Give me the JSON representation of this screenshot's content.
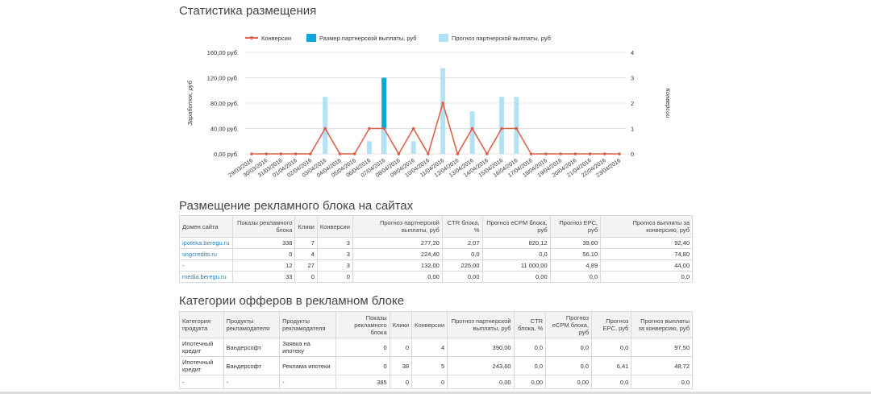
{
  "section1_title": "Статистика размещения",
  "section2_title": "Размещение рекламного блока на сайтах",
  "section3_title": "Категории офферов в рекламном блоке",
  "chart_data": {
    "type": "bar+line",
    "legend": [
      "Конверсии",
      "Размер партнерской выплаты, руб",
      "Прогноз партнерской выплаты, руб"
    ],
    "legend_placement": "top",
    "ylabel_left": "Заработок, руб",
    "ylabel_right": "Конверсии",
    "y_left_ticks": [
      "0,00 руб.",
      "40,00 руб.",
      "80,00 руб.",
      "120,00 руб.",
      "160,00 руб."
    ],
    "y_left_range": [
      0,
      160
    ],
    "y_right_ticks": [
      "0",
      "1",
      "2",
      "3",
      "4"
    ],
    "y_right_range": [
      0,
      4
    ],
    "categories": [
      "29/03/2016",
      "30/03/2016",
      "31/03/2016",
      "01/04/2016",
      "02/04/2016",
      "03/04/2016",
      "04/04/2016",
      "05/04/2016",
      "06/04/2016",
      "07/04/2016",
      "08/04/2016",
      "09/04/2016",
      "10/04/2016",
      "11/04/2016",
      "12/04/2016",
      "13/04/2016",
      "14/04/2016",
      "15/04/2016",
      "16/04/2016",
      "17/04/2016",
      "18/04/2016",
      "19/04/2016",
      "20/04/2016",
      "21/04/2016",
      "22/04/2016",
      "23/04/2016"
    ],
    "series": [
      {
        "name": "Размер партнерской выплаты, руб",
        "kind": "bar",
        "color": "#0ea5dd",
        "values": [
          0,
          0,
          0,
          0,
          0,
          0,
          0,
          0,
          0,
          120,
          0,
          0,
          0,
          0,
          0,
          0,
          0,
          0,
          0,
          0,
          0,
          0,
          0,
          0,
          0,
          0
        ]
      },
      {
        "name": "Прогноз партнерской выплаты, руб",
        "kind": "bar",
        "color": "#b3e2f5",
        "values": [
          0,
          0,
          0,
          0,
          0,
          90,
          0,
          0,
          20,
          40,
          0,
          20,
          0,
          135,
          0,
          67,
          0,
          90,
          90,
          0,
          0,
          0,
          0,
          0,
          0,
          0
        ]
      },
      {
        "name": "Конверсии",
        "kind": "line",
        "color": "#e0614a",
        "values": [
          0,
          0,
          0,
          0,
          0,
          1,
          0,
          0,
          1,
          1,
          0,
          1,
          0,
          2,
          0,
          1,
          0,
          1,
          1,
          0,
          0,
          0,
          0,
          0,
          0,
          0
        ]
      }
    ],
    "grid": true
  },
  "sites_table": {
    "headers": [
      "Домен сайта",
      "Показы рекламного блока",
      "Клики",
      "Конверсии",
      "Прогноз партнерской выплаты, руб",
      "CTR блока, %",
      "Прогноз eCPM блока, руб",
      "Прогноз EPC, руб",
      "Прогноз выплаты за конверсию, руб"
    ],
    "rows": [
      [
        "ipoteka.beregu.ru",
        "338",
        "7",
        "3",
        "277,20",
        "2,07",
        "820,12",
        "39,60",
        "92,40"
      ],
      [
        "sngcredits.ru",
        "0",
        "4",
        "3",
        "224,40",
        "0,0",
        "0,0",
        "56,10",
        "74,80"
      ],
      [
        "-",
        "12",
        "27",
        "3",
        "132,00",
        "225,00",
        "11 000,00",
        "4,89",
        "44,00"
      ],
      [
        "media.beregu.ru",
        "33",
        "0",
        "0",
        "0,00",
        "0,00",
        "0,00",
        "0,0",
        "0,0"
      ]
    ]
  },
  "cats_table": {
    "headers": [
      "Категория продукта",
      "Продукты рекламодателя",
      "Продукты рекламодателя",
      "Показы рекламного блока",
      "Клики",
      "Конверсии",
      "Прогноз партнерской выплаты, руб",
      "CTR блока, %",
      "Прогноз eCPM блока, руб",
      "Прогноз EPC, руб",
      "Прогноз выплаты за конверсию, руб"
    ],
    "rows": [
      [
        "Ипотечный кредит",
        "Вандерсофт",
        "Заявка на ипотеку",
        "0",
        "0",
        "4",
        "390,00",
        "0,0",
        "0,0",
        "0,0",
        "97,50"
      ],
      [
        "Ипотечный кредит",
        "Вандерсофт",
        "Реклама ипотеки",
        "0",
        "38",
        "5",
        "243,60",
        "0,0",
        "0,0",
        "6,41",
        "48,72"
      ],
      [
        "-",
        "-",
        "-",
        "385",
        "0",
        "0",
        "0,00",
        "0,00",
        "0,00",
        "0,0",
        "0,0"
      ]
    ]
  }
}
